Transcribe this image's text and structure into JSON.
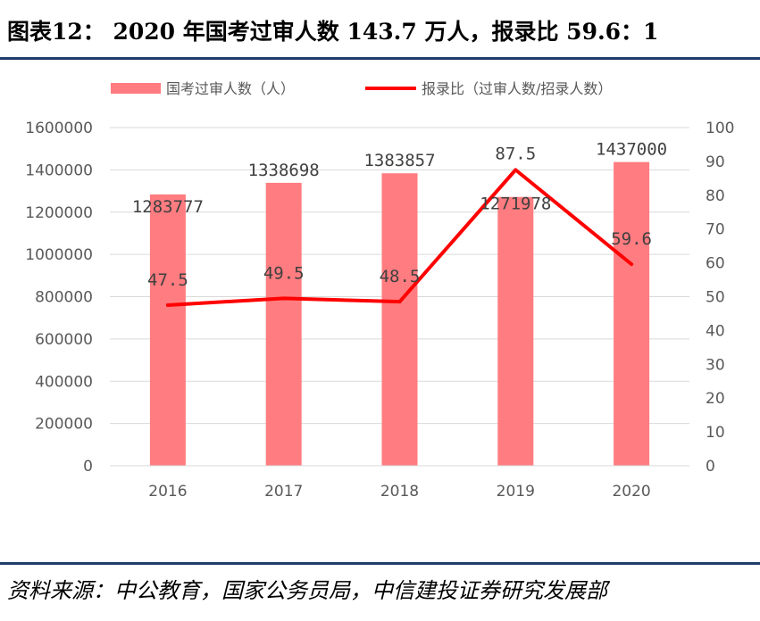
{
  "header": {
    "title": "图表12： 2020 年国考过审人数 143.7 万人，报录比 59.6：1"
  },
  "footer": {
    "source": "资料来源：中公教育，国家公务员局，中信建投证券研究发展部"
  },
  "colors": {
    "bar": "#ff7c80",
    "line": "#ff0000",
    "rule": "#1f3d6b",
    "grid": "#d9d9d9"
  },
  "chart_data": {
    "type": "bar",
    "categories": [
      "2016",
      "2017",
      "2018",
      "2019",
      "2020"
    ],
    "series": [
      {
        "name": "国考过审人数（人）",
        "type": "bar",
        "axis": "left",
        "values": [
          1283777,
          1338698,
          1383857,
          1271978,
          1437000
        ],
        "labels": [
          "1283777",
          "1338698",
          "1383857",
          "1271978",
          "1437000"
        ]
      },
      {
        "name": "报录比（过审人数/招录人数）",
        "type": "line",
        "axis": "right",
        "values": [
          47.5,
          49.5,
          48.5,
          87.5,
          59.6
        ],
        "labels": [
          "47.5",
          "49.5",
          "48.5",
          "87.5",
          "59.6"
        ]
      }
    ],
    "y_left": {
      "range": [
        0,
        1600000
      ],
      "ticks": [
        "0",
        "200000",
        "400000",
        "600000",
        "800000",
        "1000000",
        "1200000",
        "1400000",
        "1600000"
      ]
    },
    "y_right": {
      "range": [
        0,
        100
      ],
      "ticks": [
        "0",
        "10",
        "20",
        "30",
        "40",
        "50",
        "60",
        "70",
        "80",
        "90",
        "100"
      ]
    },
    "grid": true,
    "legend": "top"
  }
}
